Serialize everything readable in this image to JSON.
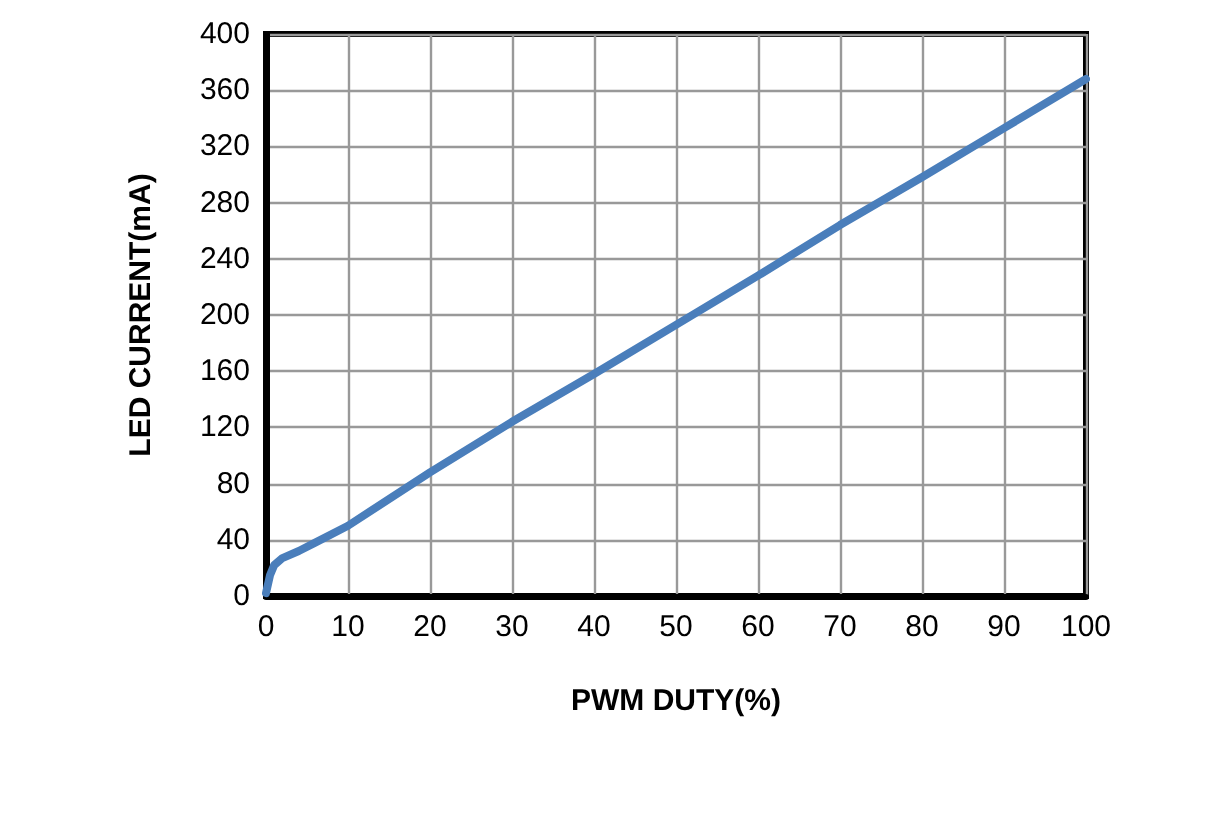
{
  "chart_data": {
    "type": "line",
    "xlabel": "PWM DUTY(%)",
    "ylabel": "LED CURRENT(mA)",
    "x": [
      0,
      0.5,
      1,
      2,
      4,
      6,
      10,
      20,
      30,
      40,
      50,
      60,
      70,
      80,
      90,
      100
    ],
    "series": [
      {
        "color": "#4a7ebb",
        "values": [
          2,
          15,
          22,
          27,
          32,
          38,
          50,
          88,
          124,
          158,
          193,
          228,
          264,
          298,
          333,
          368
        ]
      }
    ],
    "xlim": [
      0,
      100
    ],
    "xticks": [
      0,
      10,
      20,
      30,
      40,
      50,
      60,
      70,
      80,
      90,
      100
    ],
    "ylim": [
      0,
      400
    ],
    "yticks": [
      0,
      40,
      80,
      120,
      160,
      200,
      240,
      280,
      320,
      360,
      400
    ],
    "grid": true,
    "marker": "none",
    "line_style": "solid"
  }
}
